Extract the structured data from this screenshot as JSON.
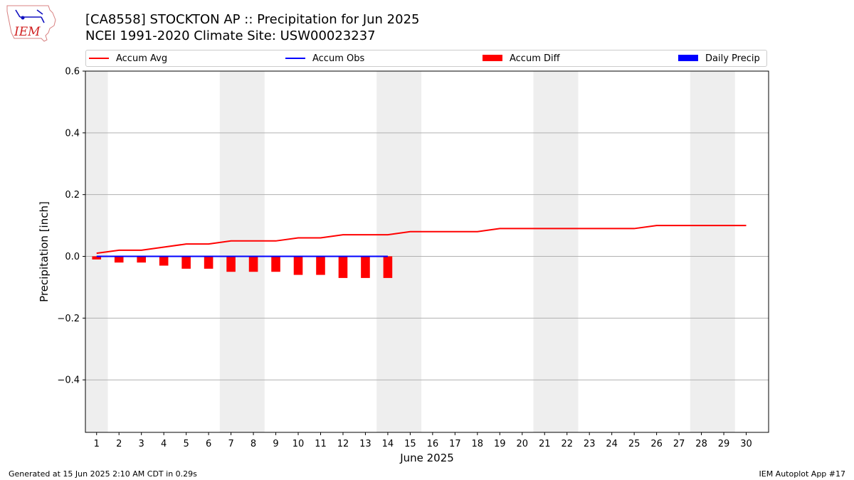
{
  "header": {
    "title_line1": "[CA8558] STOCKTON AP :: Precipitation for Jun 2025",
    "title_line2": "NCEI 1991-2020 Climate Site: USW00023237",
    "logo_text": "IEM"
  },
  "footer": {
    "left": "Generated at 15 Jun 2025 2:10 AM CDT in 0.29s",
    "right": "IEM Autoplot App #17"
  },
  "colors": {
    "accum_avg": "#ff0000",
    "accum_obs": "#0000ff",
    "accum_diff": "#ff0000",
    "daily_precip": "#0000ff",
    "weekend_shade": "#eeeeee",
    "grid": "#b0b0b0"
  },
  "chart_data": {
    "type": "line",
    "xlabel": "June 2025",
    "ylabel": "Precipitation [inch]",
    "ylim": [
      -0.57,
      0.6
    ],
    "yticks": [
      -0.4,
      -0.2,
      0.0,
      0.2,
      0.4,
      0.6
    ],
    "ytick_labels": [
      "−0.4",
      "−0.2",
      "0.0",
      "0.2",
      "0.4",
      "0.6"
    ],
    "xlim": [
      0.5,
      31.0
    ],
    "days": [
      1,
      2,
      3,
      4,
      5,
      6,
      7,
      8,
      9,
      10,
      11,
      12,
      13,
      14,
      15,
      16,
      17,
      18,
      19,
      20,
      21,
      22,
      23,
      24,
      25,
      26,
      27,
      28,
      29,
      30
    ],
    "weekend_spans": [
      [
        0.5,
        1.5
      ],
      [
        6.5,
        8.5
      ],
      [
        13.5,
        15.5
      ],
      [
        20.5,
        22.5
      ],
      [
        27.5,
        29.5
      ]
    ],
    "grid": "horizontal",
    "legend_position": "top",
    "legend": [
      "Accum Avg",
      "Accum Obs",
      "Accum Diff",
      "Daily Precip"
    ],
    "series": [
      {
        "name": "Accum Avg",
        "kind": "line",
        "x": [
          1,
          2,
          3,
          4,
          5,
          6,
          7,
          8,
          9,
          10,
          11,
          12,
          13,
          14,
          15,
          16,
          17,
          18,
          19,
          20,
          21,
          22,
          23,
          24,
          25,
          26,
          27,
          28,
          29,
          30
        ],
        "values": [
          0.01,
          0.02,
          0.02,
          0.03,
          0.04,
          0.04,
          0.05,
          0.05,
          0.05,
          0.06,
          0.06,
          0.07,
          0.07,
          0.07,
          0.08,
          0.08,
          0.08,
          0.08,
          0.09,
          0.09,
          0.09,
          0.09,
          0.09,
          0.09,
          0.09,
          0.1,
          0.1,
          0.1,
          0.1,
          0.1
        ]
      },
      {
        "name": "Accum Obs",
        "kind": "line",
        "x": [
          1,
          2,
          3,
          4,
          5,
          6,
          7,
          8,
          9,
          10,
          11,
          12,
          13,
          14
        ],
        "values": [
          0,
          0,
          0,
          0,
          0,
          0,
          0,
          0,
          0,
          0,
          0,
          0,
          0,
          0
        ]
      },
      {
        "name": "Accum Diff",
        "kind": "bar",
        "x": [
          1,
          2,
          3,
          4,
          5,
          6,
          7,
          8,
          9,
          10,
          11,
          12,
          13,
          14
        ],
        "values": [
          -0.01,
          -0.02,
          -0.02,
          -0.03,
          -0.04,
          -0.04,
          -0.05,
          -0.05,
          -0.05,
          -0.06,
          -0.06,
          -0.07,
          -0.07,
          -0.07
        ]
      },
      {
        "name": "Daily Precip",
        "kind": "bar",
        "x": [
          1,
          2,
          3,
          4,
          5,
          6,
          7,
          8,
          9,
          10,
          11,
          12,
          13,
          14
        ],
        "values": [
          0,
          0,
          0,
          0,
          0,
          0,
          0,
          0,
          0,
          0,
          0,
          0,
          0,
          0
        ]
      }
    ]
  }
}
